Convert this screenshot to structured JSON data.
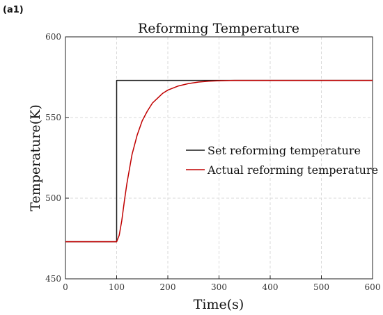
{
  "panel_label": "(a1)",
  "chart_data": {
    "type": "line",
    "title": "Reforming Temperature",
    "xlabel": "Time(s)",
    "ylabel": "Temperature(K)",
    "xlim": [
      0,
      600
    ],
    "ylim": [
      450,
      600
    ],
    "xticks": [
      0,
      100,
      200,
      300,
      400,
      500,
      600
    ],
    "yticks": [
      450,
      500,
      550,
      600
    ],
    "grid": true,
    "legend_position": "center-right",
    "series": [
      {
        "name": "Set reforming  temperature",
        "color": "#1a1a1a",
        "x": [
          0,
          100,
          100,
          600
        ],
        "y": [
          473,
          473,
          573,
          573
        ]
      },
      {
        "name": "Actual reforming temperature",
        "color": "#c00000",
        "x": [
          0,
          100,
          105,
          110,
          115,
          120,
          130,
          140,
          150,
          160,
          170,
          180,
          190,
          200,
          220,
          240,
          260,
          280,
          300,
          330,
          360,
          400,
          450,
          500,
          550,
          600
        ],
        "y": [
          473,
          473,
          477,
          486,
          498,
          509,
          527,
          539,
          548,
          554,
          559,
          562,
          565,
          567,
          569.5,
          571,
          572,
          572.5,
          572.8,
          573,
          573,
          573,
          573,
          573,
          573,
          573
        ]
      }
    ]
  }
}
